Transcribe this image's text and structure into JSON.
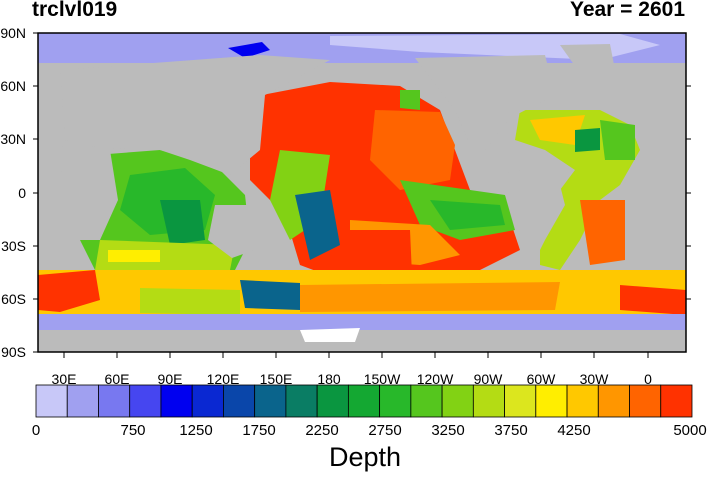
{
  "title_left": "trclvl019",
  "title_right": "Year = 2601",
  "lat_labels": [
    "90N",
    "60N",
    "30N",
    "0",
    "30S",
    "60S",
    "90S"
  ],
  "lon_labels": [
    "30E",
    "60E",
    "90E",
    "120E",
    "150E",
    "180",
    "150W",
    "120W",
    "90W",
    "60W",
    "30W",
    "0"
  ],
  "colorbar": {
    "title": "Depth",
    "labels": [
      "0",
      "750",
      "1250",
      "1750",
      "2250",
      "2750",
      "3250",
      "3750",
      "4250",
      "5000"
    ],
    "colors": [
      "#c8c8f8",
      "#a0a0f0",
      "#7878f0",
      "#4646f0",
      "#0000f0",
      "#0a28d2",
      "#0a46aa",
      "#0a648c",
      "#0a7d64",
      "#0a9640",
      "#14a832",
      "#28b82a",
      "#55c61e",
      "#82d214",
      "#b4dc14",
      "#dce61e",
      "#ffee00",
      "#ffc800",
      "#ff9600",
      "#ff6400",
      "#ff3200"
    ]
  },
  "legend_colors": {
    "land": "#bbbbbb",
    "sea_ice": "#ffffff"
  }
}
